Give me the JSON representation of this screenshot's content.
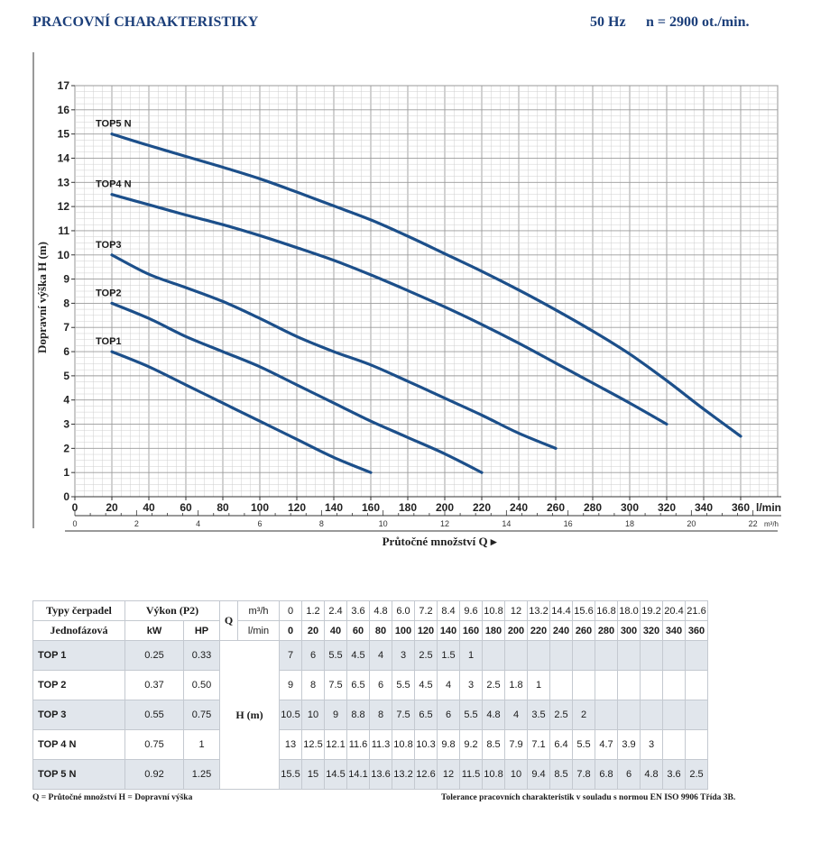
{
  "header": {
    "title": "PRACOVNÍ CHARAKTERISTIKY",
    "frequency": "50 Hz",
    "speed": "n = 2900 ot./min."
  },
  "chart_data": {
    "type": "line",
    "ylabel": "Dopravní výška H (m)",
    "xlabel": "Průtočné množství Q ▸",
    "x_unit": "l/min",
    "x2_unit": "m³/h",
    "xlim": [
      0,
      380
    ],
    "ylim": [
      0,
      17
    ],
    "x_ticks": [
      0,
      20,
      40,
      60,
      80,
      100,
      120,
      140,
      160,
      180,
      200,
      220,
      240,
      260,
      280,
      300,
      320,
      340,
      360
    ],
    "x2_ticks": [
      0,
      2,
      4,
      6,
      8,
      10,
      12,
      14,
      16,
      18,
      20,
      22
    ],
    "y_ticks": [
      0,
      1,
      2,
      3,
      4,
      5,
      6,
      7,
      8,
      9,
      10,
      11,
      12,
      13,
      14,
      15,
      16,
      17
    ],
    "grid": true,
    "line_color": "#1c4f8a",
    "series": [
      {
        "name": "TOP1",
        "x": [
          20,
          40,
          60,
          80,
          100,
          120,
          140,
          160
        ],
        "y": [
          6,
          5.5,
          4.5,
          4,
          3,
          2.5,
          1.5,
          1
        ]
      },
      {
        "name": "TOP2",
        "x": [
          20,
          40,
          60,
          80,
          100,
          120,
          140,
          160,
          180,
          200,
          220
        ],
        "y": [
          8,
          7.5,
          6.5,
          6,
          5.5,
          4.5,
          4,
          3,
          2.5,
          1.8,
          1
        ]
      },
      {
        "name": "TOP3",
        "x": [
          20,
          40,
          60,
          80,
          100,
          120,
          140,
          160,
          180,
          200,
          220,
          240,
          260
        ],
        "y": [
          10,
          9,
          8.8,
          8,
          7.5,
          6.5,
          6,
          5.5,
          4.8,
          4,
          3.5,
          2.5,
          2
        ]
      },
      {
        "name": "TOP4 N",
        "x": [
          20,
          40,
          60,
          80,
          100,
          120,
          140,
          160,
          180,
          200,
          220,
          240,
          260,
          280,
          300,
          320
        ],
        "y": [
          12.5,
          12.1,
          11.6,
          11.3,
          10.8,
          10.3,
          9.8,
          9.2,
          8.5,
          7.9,
          7.1,
          6.4,
          5.5,
          4.7,
          3.9,
          3
        ]
      },
      {
        "name": "TOP5 N",
        "x": [
          20,
          40,
          60,
          80,
          100,
          120,
          140,
          160,
          180,
          200,
          220,
          240,
          260,
          280,
          300,
          320,
          340,
          360
        ],
        "y": [
          15,
          14.5,
          14.1,
          13.6,
          13.2,
          12.6,
          12,
          11.5,
          10.8,
          10,
          9.4,
          8.5,
          7.8,
          6.8,
          6,
          4.8,
          3.6,
          2.5
        ]
      }
    ]
  },
  "table": {
    "header": {
      "types_label": "Typy čerpadel",
      "phase_label": "Jednofázová",
      "power_label": "Výkon (P2)",
      "kw_label": "kW",
      "hp_label": "HP",
      "q_label": "Q",
      "q_unit_m3h": "m³/h",
      "q_unit_lmin": "l/min",
      "h_label": "H (m)"
    },
    "q_m3h": [
      "0",
      "1.2",
      "2.4",
      "3.6",
      "4.8",
      "6.0",
      "7.2",
      "8.4",
      "9.6",
      "10.8",
      "12",
      "13.2",
      "14.4",
      "15.6",
      "16.8",
      "18.0",
      "19.2",
      "20.4",
      "21.6"
    ],
    "q_lmin": [
      "0",
      "20",
      "40",
      "60",
      "80",
      "100",
      "120",
      "140",
      "160",
      "180",
      "200",
      "220",
      "240",
      "260",
      "280",
      "300",
      "320",
      "340",
      "360"
    ],
    "rows": [
      {
        "name": "TOP 1",
        "kw": "0.25",
        "hp": "0.33",
        "h": [
          "7",
          "6",
          "5.5",
          "4.5",
          "4",
          "3",
          "2.5",
          "1.5",
          "1",
          "",
          "",
          "",
          "",
          "",
          "",
          "",
          "",
          "",
          ""
        ]
      },
      {
        "name": "TOP 2",
        "kw": "0.37",
        "hp": "0.50",
        "h": [
          "9",
          "8",
          "7.5",
          "6.5",
          "6",
          "5.5",
          "4.5",
          "4",
          "3",
          "2.5",
          "1.8",
          "1",
          "",
          "",
          "",
          "",
          "",
          "",
          ""
        ]
      },
      {
        "name": "TOP 3",
        "kw": "0.55",
        "hp": "0.75",
        "h": [
          "10.5",
          "10",
          "9",
          "8.8",
          "8",
          "7.5",
          "6.5",
          "6",
          "5.5",
          "4.8",
          "4",
          "3.5",
          "2.5",
          "2",
          "",
          "",
          "",
          "",
          ""
        ]
      },
      {
        "name": "TOP 4 N",
        "kw": "0.75",
        "hp": "1",
        "h": [
          "13",
          "12.5",
          "12.1",
          "11.6",
          "11.3",
          "10.8",
          "10.3",
          "9.8",
          "9.2",
          "8.5",
          "7.9",
          "7.1",
          "6.4",
          "5.5",
          "4.7",
          "3.9",
          "3",
          "",
          ""
        ]
      },
      {
        "name": "TOP 5 N",
        "kw": "0.92",
        "hp": "1.25",
        "h": [
          "15.5",
          "15",
          "14.5",
          "14.1",
          "13.6",
          "13.2",
          "12.6",
          "12",
          "11.5",
          "10.8",
          "10",
          "9.4",
          "8.5",
          "7.8",
          "6.8",
          "6",
          "4.8",
          "3.6",
          "2.5"
        ]
      }
    ]
  },
  "footer": {
    "legend": "Q = Průtočné množství   H = Dopravní výška",
    "tolerance": "Tolerance pracovních charakteristik v souladu s normou EN ISO 9906 Třída 3B."
  }
}
